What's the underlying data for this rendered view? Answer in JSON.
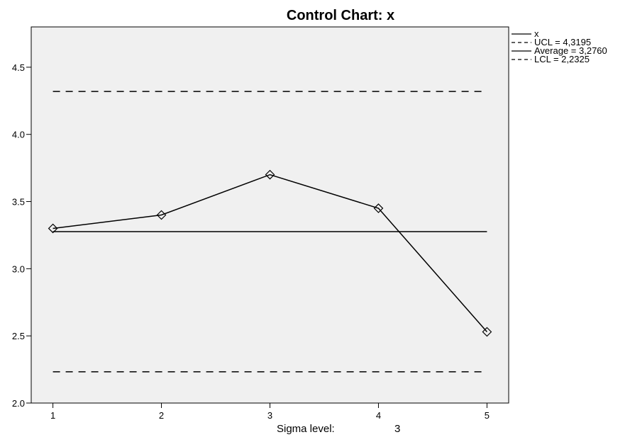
{
  "chart_data": {
    "type": "line",
    "title": "Control Chart: x",
    "x": [
      1,
      2,
      3,
      4,
      5
    ],
    "x_tick_labels": [
      "1",
      "2",
      "3",
      "4",
      "5"
    ],
    "xlim": [
      0.8,
      5.2
    ],
    "ylim": [
      2.0,
      4.8
    ],
    "y_ticks": [
      2.0,
      2.5,
      3.0,
      3.5,
      4.0,
      4.5
    ],
    "y_tick_labels": [
      "2.0",
      "2.5",
      "3.0",
      "3.5",
      "4.0",
      "4.5"
    ],
    "series": [
      {
        "name": "x",
        "values": [
          3.3,
          3.4,
          3.7,
          3.45,
          2.53
        ],
        "marker": "diamond"
      }
    ],
    "control_lines": [
      {
        "key": "ucl",
        "value": 4.3195,
        "style": "dashed",
        "legend": "UCL = 4,3195"
      },
      {
        "key": "average",
        "value": 3.276,
        "style": "solid",
        "legend": "Average = 3,2760"
      },
      {
        "key": "lcl",
        "value": 2.2325,
        "style": "dashed",
        "legend": "LCL = 2,2325"
      }
    ],
    "legend_position": "top-right",
    "grid": false,
    "plot_background": "#f0f0f0",
    "line_color": "#000000"
  },
  "footer": {
    "sigma_label": "Sigma level:",
    "sigma_value": "3"
  }
}
